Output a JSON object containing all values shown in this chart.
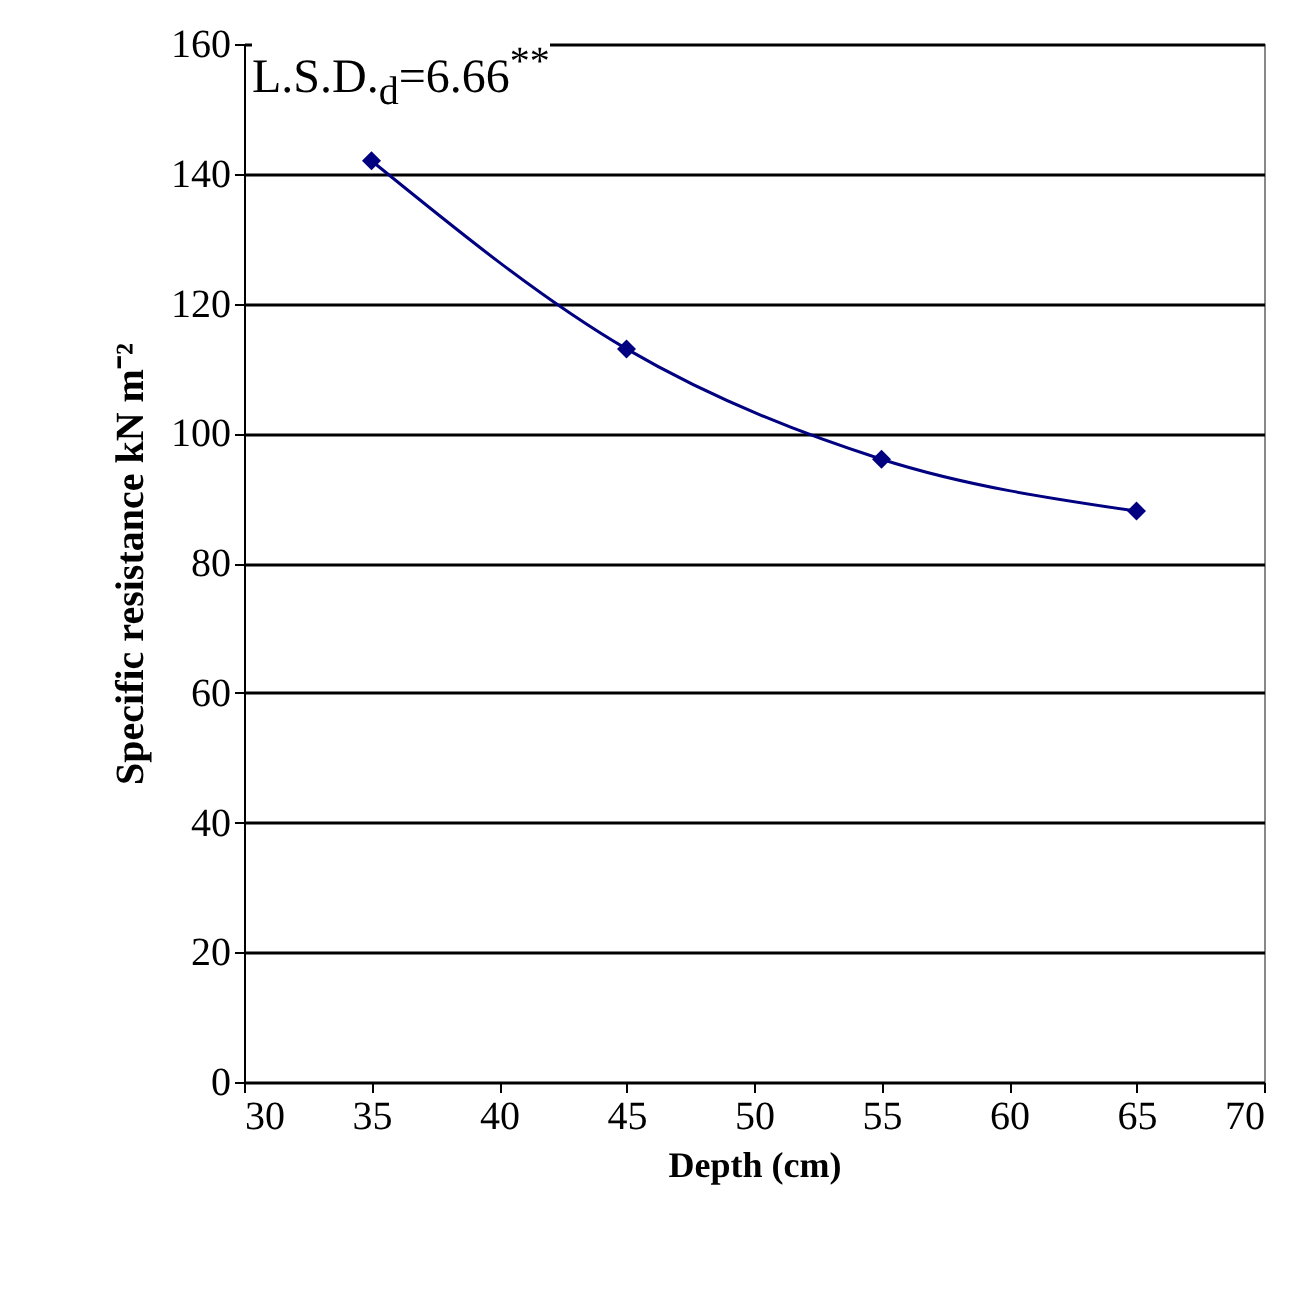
{
  "chart_data": {
    "type": "line",
    "xlabel": "Depth (cm)",
    "ylabel": "Specific resistance kN m⁻²",
    "annotations": [
      "L.S.D.$_{d}$=6.66$^{**}$"
    ],
    "x": [
      35,
      45,
      55,
      65
    ],
    "series": [
      {
        "color": "#000080",
        "values": [
          142,
          113,
          96,
          88
        ]
      }
    ],
    "xlim": [
      30,
      70
    ],
    "xticks": [
      30,
      35,
      40,
      45,
      50,
      55,
      60,
      65,
      70
    ],
    "ylim": [
      0,
      160
    ],
    "yticks": [
      0,
      20,
      40,
      60,
      80,
      100,
      120,
      140,
      160
    ],
    "grid": "y",
    "marker": "diamond",
    "line_style": "solid"
  }
}
